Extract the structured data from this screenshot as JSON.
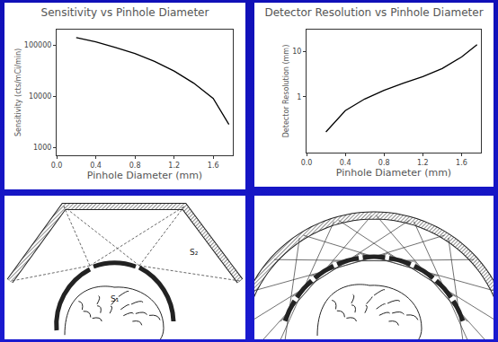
{
  "chart_data": [
    {
      "type": "line",
      "title": "Sensitivity vs Pinhole Diameter",
      "x_label": "Pinhole Diameter (mm)",
      "y_label": "Sensitivity (cts/mCi/min)",
      "x": [
        0.2,
        0.4,
        0.6,
        0.8,
        1.0,
        1.2,
        1.4,
        1.6,
        1.76
      ],
      "values": [
        140000,
        115000,
        90000,
        68000,
        48000,
        31000,
        18000,
        9000,
        2800
      ],
      "color": "#000000",
      "log": "y",
      "grid": false,
      "xlim": [
        0,
        1.8
      ],
      "ylim": [
        700,
        200000
      ],
      "xticks": [
        {
          "value": 0,
          "label": "0.0"
        },
        0.4,
        0.8,
        1.2,
        1.6
      ],
      "yticks": [
        1000,
        10000,
        100000
      ]
    },
    {
      "type": "line",
      "title": "Detector Resolution vs Pinhole Diameter",
      "x_label": "Pinhole Diameter (mm)",
      "y_label": "Detector Resolution (mm)",
      "x": [
        0.2,
        0.4,
        0.6,
        0.8,
        1.0,
        1.2,
        1.4,
        1.6,
        1.76
      ],
      "values": [
        0.17,
        0.5,
        0.9,
        1.4,
        2.0,
        2.8,
        4.2,
        7.5,
        14
      ],
      "color": "#000000",
      "log": "y",
      "grid": false,
      "xlim": [
        0,
        1.8
      ],
      "ylim": [
        0.06,
        30
      ],
      "xticks": [
        {
          "value": 0,
          "label": "0.0"
        },
        0.4,
        0.8,
        1.2,
        1.6
      ],
      "yticks": [
        1,
        10
      ]
    }
  ],
  "diagrams": [
    {
      "labels": [
        "S₂",
        "S₁"
      ]
    }
  ]
}
